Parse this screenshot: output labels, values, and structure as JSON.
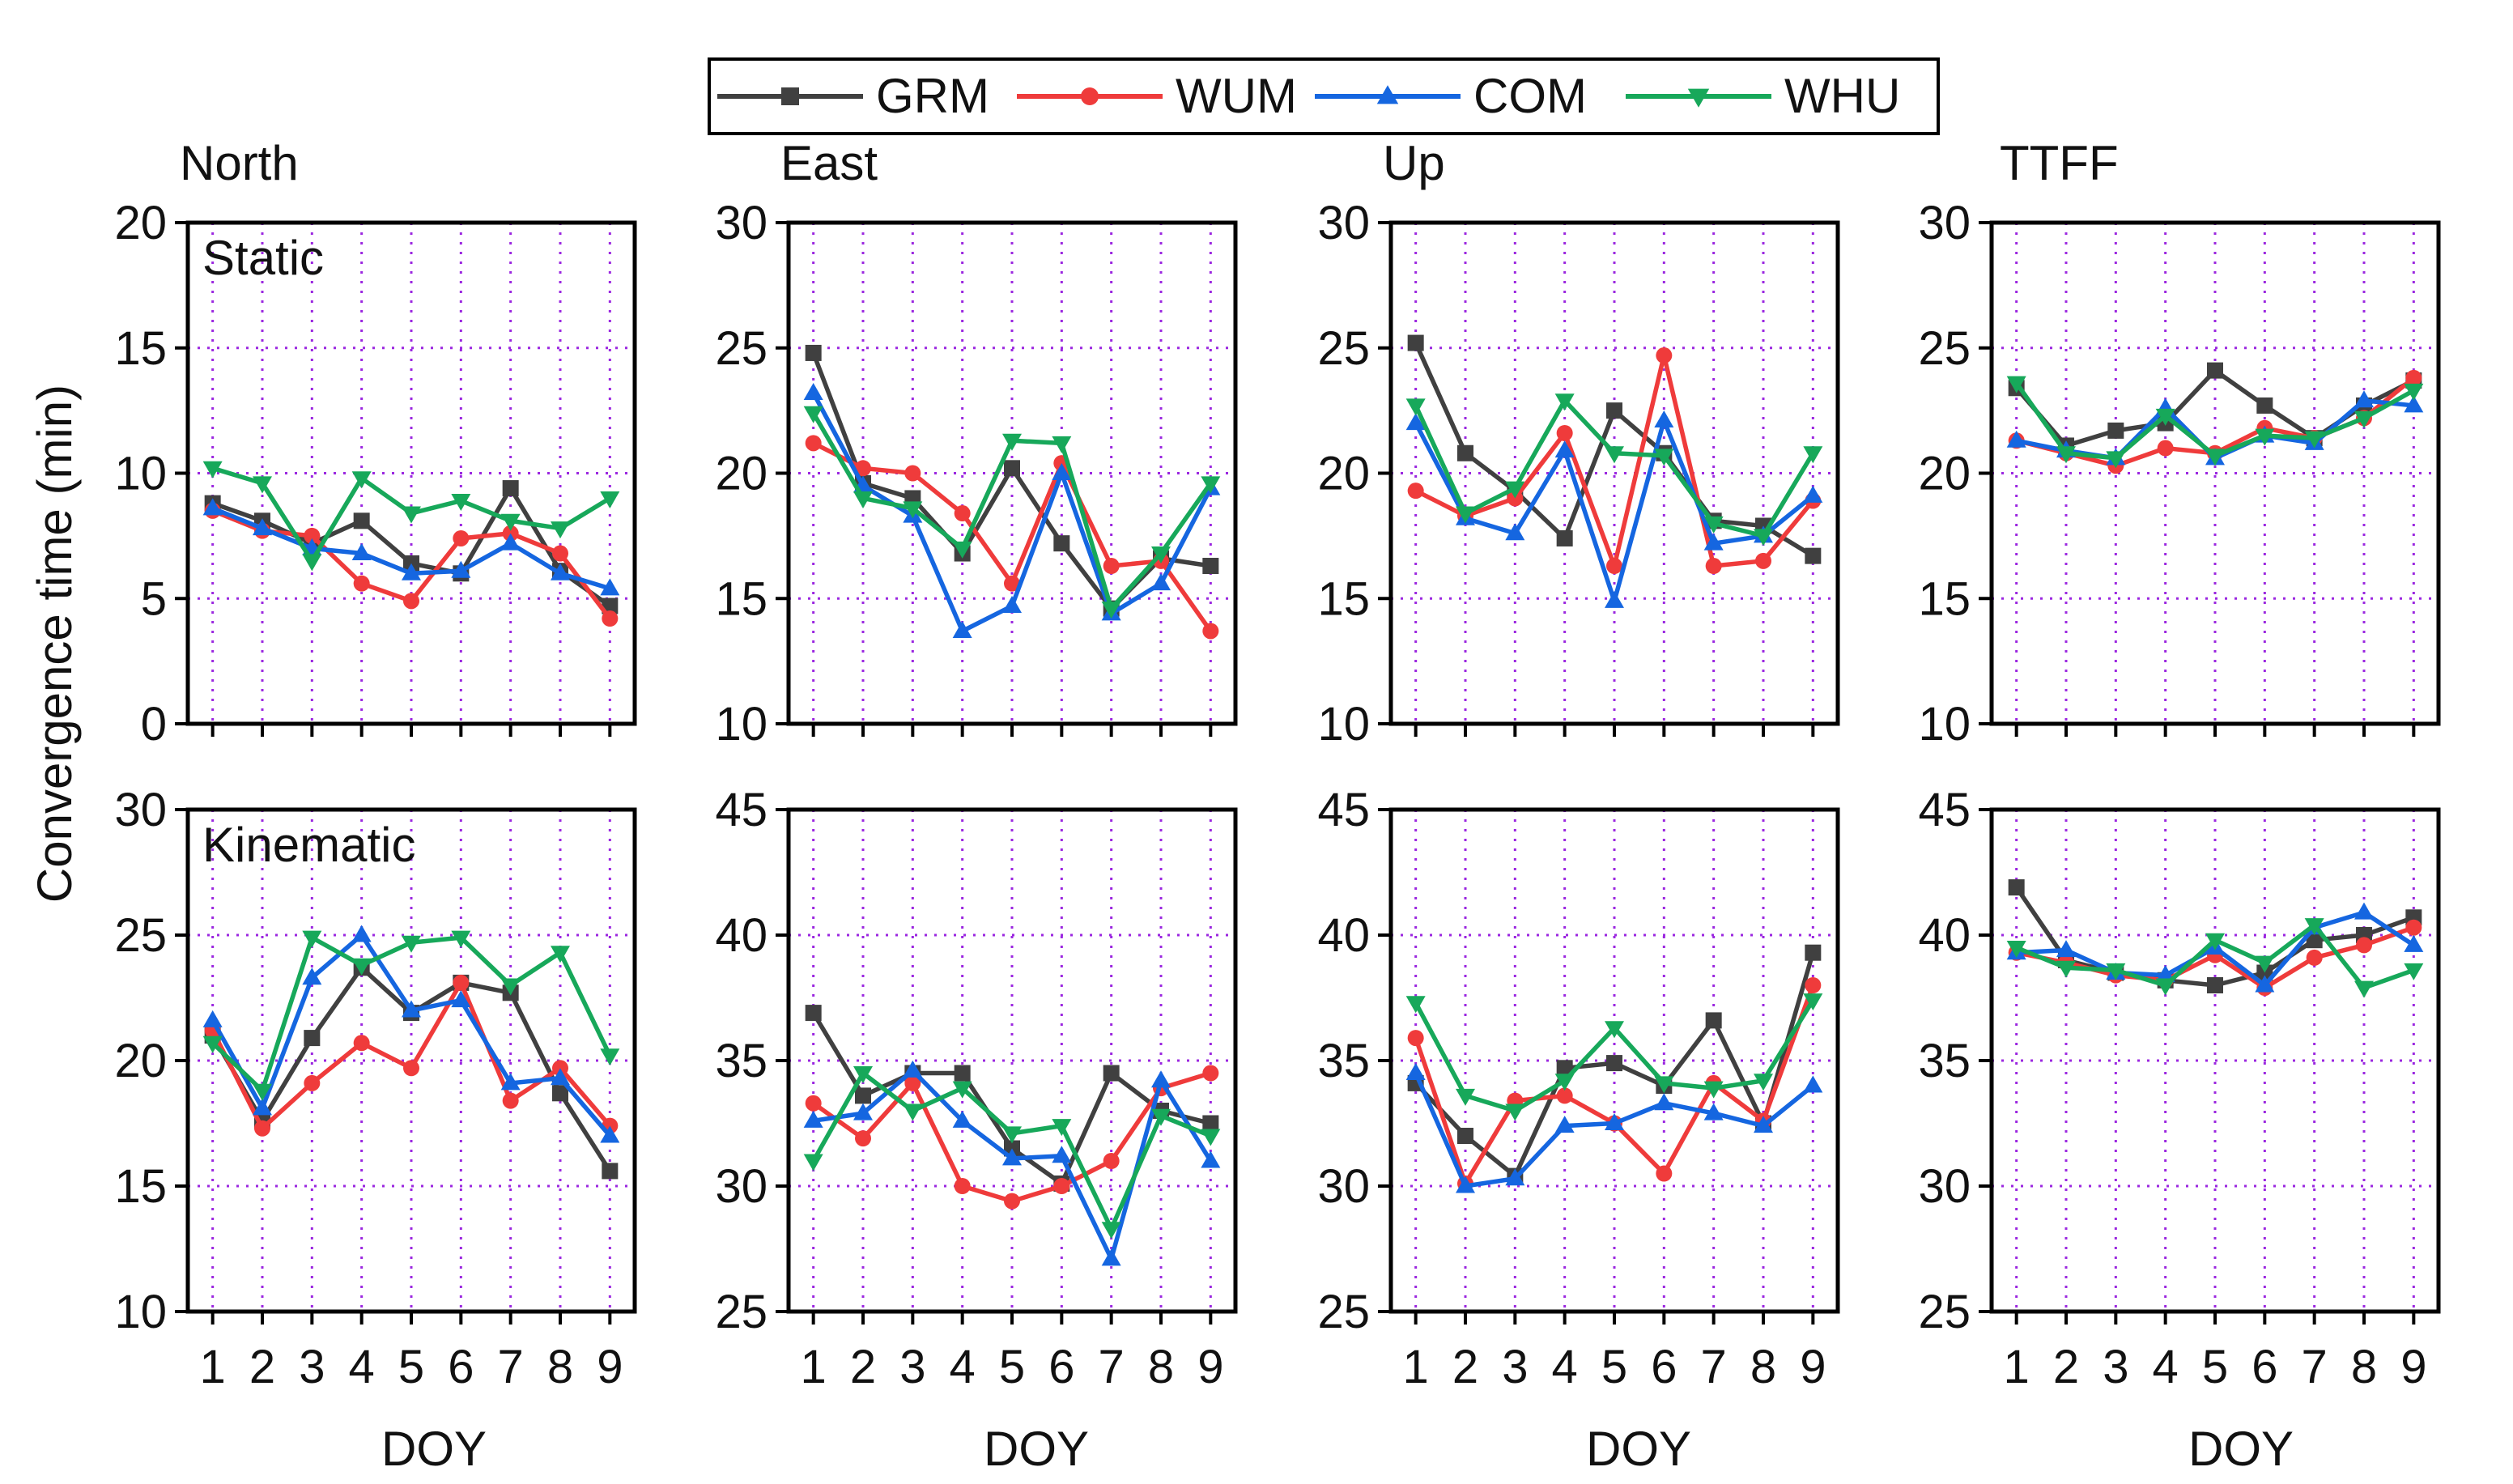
{
  "figure": {
    "ylabel": "Convergence time (min)",
    "xlabel": "DOY",
    "row_labels": [
      "Static",
      "Kinematic"
    ],
    "column_titles": [
      "North",
      "East",
      "Up",
      "TTFF"
    ]
  },
  "legend": [
    {
      "name": "GRM",
      "color": "#404040",
      "marker": "square"
    },
    {
      "name": "WUM",
      "color": "#ef3b3b",
      "marker": "circle"
    },
    {
      "name": "COM",
      "color": "#1566e0",
      "marker": "triangle-up"
    },
    {
      "name": "WHU",
      "color": "#17a85a",
      "marker": "triangle-down"
    }
  ],
  "chart_data": [
    {
      "type": "line",
      "id": "static-north",
      "title": "North",
      "row_label": "Static",
      "xlabel": "DOY",
      "ylabel": "Convergence time (min)",
      "x": [
        1,
        2,
        3,
        4,
        5,
        6,
        7,
        8,
        9
      ],
      "ylim": [
        0,
        20
      ],
      "yticks": [
        0,
        5,
        10,
        15,
        20
      ],
      "grid": true,
      "series": [
        {
          "name": "GRM",
          "values": [
            8.8,
            8.1,
            7.2,
            8.1,
            6.4,
            6.0,
            9.4,
            6.1,
            4.7
          ]
        },
        {
          "name": "WUM",
          "values": [
            8.5,
            7.7,
            7.5,
            5.6,
            4.9,
            7.4,
            7.6,
            6.8,
            4.2
          ]
        },
        {
          "name": "COM",
          "values": [
            8.6,
            7.8,
            7.0,
            6.8,
            6.0,
            6.1,
            7.2,
            6.0,
            5.4
          ]
        },
        {
          "name": "WHU",
          "values": [
            10.2,
            9.6,
            6.5,
            9.8,
            8.4,
            8.9,
            8.1,
            7.8,
            9.0
          ]
        }
      ]
    },
    {
      "type": "line",
      "id": "static-east",
      "title": "East",
      "row_label": "",
      "xlabel": "DOY",
      "ylabel": "",
      "x": [
        1,
        2,
        3,
        4,
        5,
        6,
        7,
        8,
        9
      ],
      "ylim": [
        10,
        30
      ],
      "yticks": [
        10,
        15,
        20,
        25,
        30
      ],
      "grid": true,
      "series": [
        {
          "name": "GRM",
          "values": [
            24.8,
            19.6,
            19.0,
            16.8,
            20.2,
            17.2,
            14.6,
            16.6,
            16.3
          ]
        },
        {
          "name": "WUM",
          "values": [
            21.2,
            20.2,
            20.0,
            18.4,
            15.6,
            20.4,
            16.3,
            16.5,
            13.7
          ]
        },
        {
          "name": "COM",
          "values": [
            23.2,
            19.5,
            18.3,
            13.7,
            14.7,
            20.0,
            14.4,
            15.6,
            19.4
          ]
        },
        {
          "name": "WHU",
          "values": [
            22.4,
            19.0,
            18.6,
            17.0,
            21.3,
            21.2,
            14.6,
            16.8,
            19.6
          ]
        }
      ]
    },
    {
      "type": "line",
      "id": "static-up",
      "title": "Up",
      "row_label": "",
      "xlabel": "DOY",
      "ylabel": "",
      "x": [
        1,
        2,
        3,
        4,
        5,
        6,
        7,
        8,
        9
      ],
      "ylim": [
        10,
        30
      ],
      "yticks": [
        10,
        15,
        20,
        25,
        30
      ],
      "grid": true,
      "series": [
        {
          "name": "GRM",
          "values": [
            25.2,
            20.8,
            19.3,
            17.4,
            22.5,
            20.8,
            18.1,
            17.9,
            16.7
          ]
        },
        {
          "name": "WUM",
          "values": [
            19.3,
            18.3,
            19.0,
            21.6,
            16.3,
            24.7,
            16.3,
            16.5,
            18.9
          ]
        },
        {
          "name": "COM",
          "values": [
            22.0,
            18.2,
            17.6,
            20.9,
            14.9,
            22.1,
            17.2,
            17.5,
            19.1
          ]
        },
        {
          "name": "WHU",
          "values": [
            22.7,
            18.4,
            19.4,
            22.9,
            20.8,
            20.7,
            18.0,
            17.5,
            20.8
          ]
        }
      ]
    },
    {
      "type": "line",
      "id": "static-ttff",
      "title": "TTFF",
      "row_label": "",
      "xlabel": "DOY",
      "ylabel": "",
      "x": [
        1,
        2,
        3,
        4,
        5,
        6,
        7,
        8,
        9
      ],
      "ylim": [
        10,
        30
      ],
      "yticks": [
        10,
        15,
        20,
        25,
        30
      ],
      "grid": true,
      "series": [
        {
          "name": "GRM",
          "values": [
            23.4,
            21.1,
            21.7,
            22.0,
            24.1,
            22.7,
            21.4,
            22.7,
            23.7
          ]
        },
        {
          "name": "WUM",
          "values": [
            21.3,
            20.8,
            20.3,
            21.0,
            20.8,
            21.8,
            21.4,
            22.2,
            23.8
          ]
        },
        {
          "name": "COM",
          "values": [
            21.3,
            20.9,
            20.6,
            22.6,
            20.6,
            21.5,
            21.2,
            22.9,
            22.7
          ]
        },
        {
          "name": "WHU",
          "values": [
            23.6,
            20.8,
            20.6,
            22.3,
            20.7,
            21.5,
            21.4,
            22.2,
            23.3
          ]
        }
      ]
    },
    {
      "type": "line",
      "id": "kinematic-north",
      "title": "",
      "row_label": "Kinematic",
      "xlabel": "DOY",
      "ylabel": "Convergence time (min)",
      "x": [
        1,
        2,
        3,
        4,
        5,
        6,
        7,
        8,
        9
      ],
      "ylim": [
        10,
        30
      ],
      "yticks": [
        10,
        15,
        20,
        25,
        30
      ],
      "grid": true,
      "series": [
        {
          "name": "GRM",
          "values": [
            21.0,
            17.6,
            20.9,
            23.7,
            21.9,
            23.1,
            22.7,
            18.7,
            15.6
          ]
        },
        {
          "name": "WUM",
          "values": [
            21.2,
            17.3,
            19.1,
            20.7,
            19.7,
            23.1,
            18.4,
            19.7,
            17.4
          ]
        },
        {
          "name": "COM",
          "values": [
            21.6,
            18.1,
            23.3,
            25.0,
            22.0,
            22.4,
            19.1,
            19.3,
            17.0
          ]
        },
        {
          "name": "WHU",
          "values": [
            20.7,
            18.8,
            24.9,
            23.8,
            24.7,
            24.9,
            23.0,
            24.3,
            20.2
          ]
        }
      ]
    },
    {
      "type": "line",
      "id": "kinematic-east",
      "title": "",
      "row_label": "",
      "xlabel": "DOY",
      "ylabel": "",
      "x": [
        1,
        2,
        3,
        4,
        5,
        6,
        7,
        8,
        9
      ],
      "ylim": [
        25,
        45
      ],
      "yticks": [
        25,
        30,
        35,
        40,
        45
      ],
      "grid": true,
      "series": [
        {
          "name": "GRM",
          "values": [
            36.9,
            33.6,
            34.5,
            34.5,
            31.5,
            30.1,
            34.5,
            33.0,
            32.5
          ]
        },
        {
          "name": "WUM",
          "values": [
            33.3,
            31.9,
            34.1,
            30.0,
            29.4,
            30.0,
            31.0,
            33.9,
            34.5
          ]
        },
        {
          "name": "COM",
          "values": [
            32.6,
            32.9,
            34.6,
            32.6,
            31.1,
            31.2,
            27.1,
            34.2,
            31.0
          ]
        },
        {
          "name": "WHU",
          "values": [
            31.0,
            34.5,
            33.0,
            33.9,
            32.1,
            32.4,
            28.3,
            32.8,
            32.0
          ]
        }
      ]
    },
    {
      "type": "line",
      "id": "kinematic-up",
      "title": "",
      "row_label": "",
      "xlabel": "DOY",
      "ylabel": "",
      "x": [
        1,
        2,
        3,
        4,
        5,
        6,
        7,
        8,
        9
      ],
      "ylim": [
        25,
        45
      ],
      "yticks": [
        25,
        30,
        35,
        40,
        45
      ],
      "grid": true,
      "series": [
        {
          "name": "GRM",
          "values": [
            34.1,
            32.0,
            30.4,
            34.7,
            34.9,
            34.0,
            36.6,
            32.5,
            39.3
          ]
        },
        {
          "name": "WUM",
          "values": [
            35.9,
            30.1,
            33.4,
            33.6,
            32.5,
            30.5,
            34.1,
            32.6,
            38.0
          ]
        },
        {
          "name": "COM",
          "values": [
            34.5,
            30.0,
            30.3,
            32.4,
            32.5,
            33.3,
            32.9,
            32.4,
            34.0
          ]
        },
        {
          "name": "WHU",
          "values": [
            37.3,
            33.6,
            33.0,
            34.2,
            36.3,
            34.1,
            33.9,
            34.2,
            37.4
          ]
        }
      ]
    },
    {
      "type": "line",
      "id": "kinematic-ttff",
      "title": "",
      "row_label": "",
      "xlabel": "DOY",
      "ylabel": "",
      "x": [
        1,
        2,
        3,
        4,
        5,
        6,
        7,
        8,
        9
      ],
      "ylim": [
        25,
        45
      ],
      "yticks": [
        25,
        30,
        35,
        40,
        45
      ],
      "grid": true,
      "series": [
        {
          "name": "GRM",
          "values": [
            41.9,
            39.0,
            38.5,
            38.2,
            38.0,
            38.5,
            39.8,
            40.0,
            40.7
          ]
        },
        {
          "name": "WUM",
          "values": [
            39.3,
            38.9,
            38.4,
            38.2,
            39.2,
            37.9,
            39.1,
            39.6,
            40.3
          ]
        },
        {
          "name": "COM",
          "values": [
            39.3,
            39.4,
            38.5,
            38.4,
            39.5,
            38.0,
            40.3,
            40.9,
            39.6
          ]
        },
        {
          "name": "WHU",
          "values": [
            39.5,
            38.7,
            38.6,
            38.0,
            39.8,
            38.9,
            40.4,
            37.9,
            38.6
          ]
        }
      ]
    }
  ]
}
